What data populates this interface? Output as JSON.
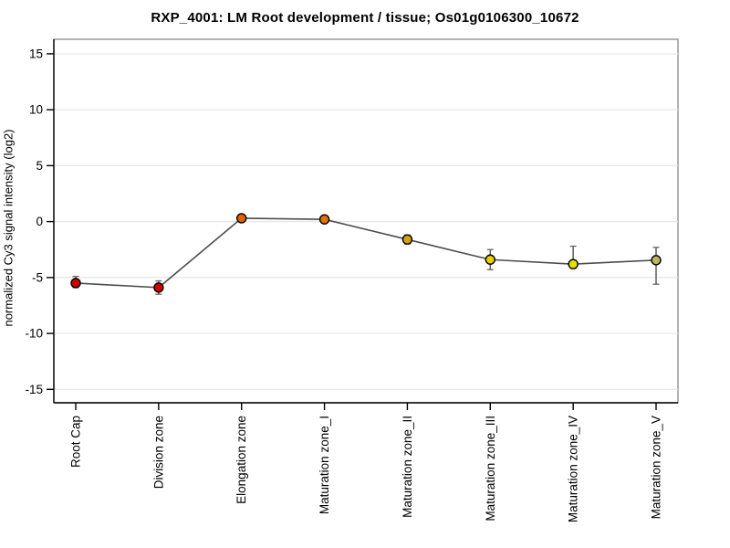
{
  "chart_data": {
    "type": "line",
    "title": "RXP_4001: LM Root development / tissue; Os01g0106300_10672",
    "ylabel": "normalized Cy3 signal intensity (log2)",
    "xlabel": "",
    "categories": [
      "Root Cap",
      "Division zone",
      "Elongation zone",
      "Maturation zone_I",
      "Maturation zone_II",
      "Maturation zone_III",
      "Maturation zone_IV",
      "Maturation zone_V"
    ],
    "values": [
      -5.5,
      -5.9,
      0.3,
      0.2,
      -1.6,
      -3.4,
      -3.8,
      -3.45
    ],
    "error_upper": [
      -4.9,
      -5.3,
      0.6,
      0.5,
      -1.2,
      -2.5,
      -2.2,
      -2.3
    ],
    "error_lower": [
      -5.9,
      -6.5,
      0.0,
      -0.1,
      -2.0,
      -4.3,
      -4.2,
      -5.6
    ],
    "point_colors": [
      "#cc0000",
      "#cc0000",
      "#e06000",
      "#e07000",
      "#d4a017",
      "#e6d200",
      "#e8e000",
      "#b8b860"
    ],
    "yticks": [
      15,
      10,
      5,
      0,
      -5,
      -10,
      -15
    ],
    "ylim": [
      -16.2,
      16.3
    ],
    "grid": "horizontal",
    "legend": "none",
    "colors": {
      "line": "#4d4d4d",
      "errorbar": "#666666",
      "marker_stroke": "#000000",
      "gridline": "#e6e6e6",
      "plot_border": "#888888",
      "axis": "#000000",
      "tick_label": "#000000"
    }
  }
}
